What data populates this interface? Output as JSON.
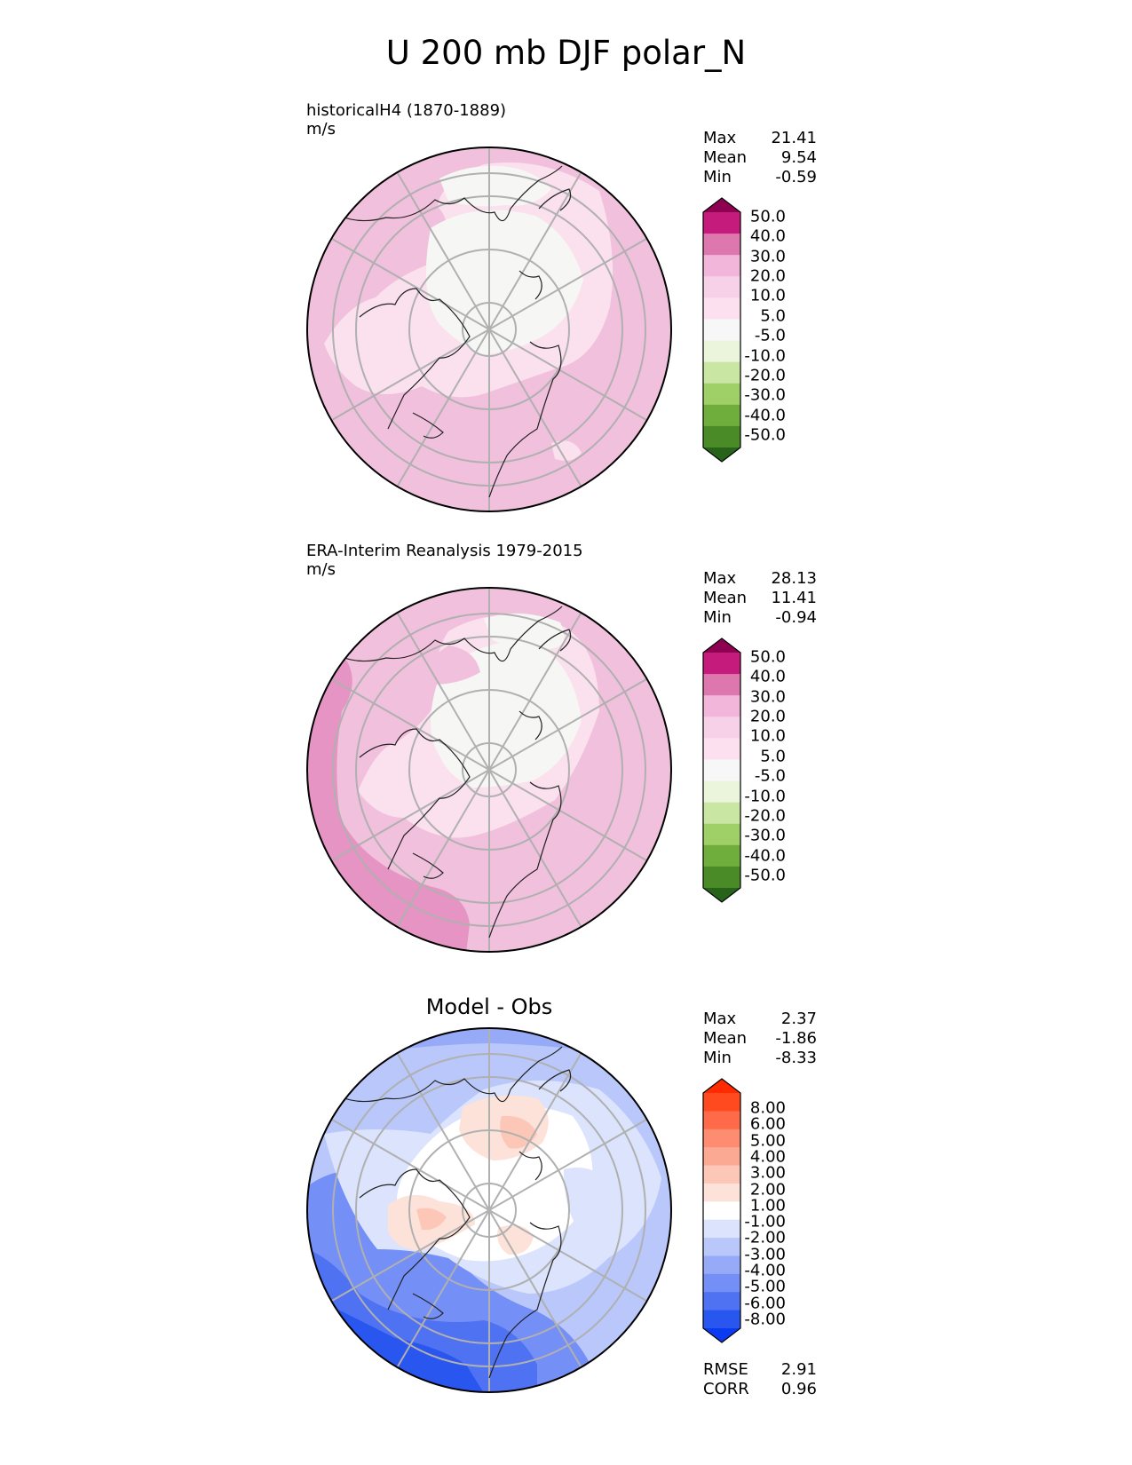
{
  "title": "U 200 mb DJF polar_N",
  "panels": [
    {
      "name": "model",
      "label_line1": "historicalH4 (1870-1889)",
      "label_line2": "m/s",
      "stats": [
        [
          "Max",
          "21.41"
        ],
        [
          "Mean",
          "9.54"
        ],
        [
          "Min",
          "-0.59"
        ]
      ],
      "colorbar_ticks": [
        "50.0",
        "40.0",
        "30.0",
        "20.0",
        "10.0",
        "5.0",
        "-5.0",
        "-10.0",
        "-20.0",
        "-30.0",
        "-40.0",
        "-50.0"
      ],
      "colorbar_colors": [
        "#8e0152",
        "#c51b7d",
        "#de77ae",
        "#f1b6da",
        "#f7d1e8",
        "#fde0ef",
        "#f7f7f7",
        "#eaf5dc",
        "#c9e7a2",
        "#9fd068",
        "#6fae3c",
        "#4a8b27",
        "#276419"
      ]
    },
    {
      "name": "obs",
      "label_line1": "ERA-Interim Reanalysis 1979-2015",
      "label_line2": "m/s",
      "stats": [
        [
          "Max",
          "28.13"
        ],
        [
          "Mean",
          "11.41"
        ],
        [
          "Min",
          "-0.94"
        ]
      ],
      "colorbar_ticks": [
        "50.0",
        "40.0",
        "30.0",
        "20.0",
        "10.0",
        "5.0",
        "-5.0",
        "-10.0",
        "-20.0",
        "-30.0",
        "-40.0",
        "-50.0"
      ],
      "colorbar_colors": [
        "#8e0152",
        "#c51b7d",
        "#de77ae",
        "#f1b6da",
        "#f7d1e8",
        "#fde0ef",
        "#f7f7f7",
        "#eaf5dc",
        "#c9e7a2",
        "#9fd068",
        "#6fae3c",
        "#4a8b27",
        "#276419"
      ]
    },
    {
      "name": "diff",
      "panel_title": "Model - Obs",
      "stats": [
        [
          "Max",
          "2.37"
        ],
        [
          "Mean",
          "-1.86"
        ],
        [
          "Min",
          "-8.33"
        ]
      ],
      "colorbar_ticks": [
        "8.00",
        "6.00",
        "5.00",
        "4.00",
        "3.00",
        "2.00",
        "1.00",
        "-1.00",
        "-2.00",
        "-3.00",
        "-4.00",
        "-5.00",
        "-6.00",
        "-8.00"
      ],
      "colorbar_colors": [
        "#ff2a00",
        "#ff4a20",
        "#ff6a48",
        "#fd8c70",
        "#fca994",
        "#fdc7b8",
        "#fde2da",
        "#ffffff",
        "#dbe3fd",
        "#b9c7fb",
        "#96aaf8",
        "#748ff6",
        "#4f72f3",
        "#2a56f0",
        "#0a3bf0"
      ],
      "metrics": [
        [
          "RMSE",
          "2.91"
        ],
        [
          "CORR",
          "0.96"
        ]
      ]
    }
  ]
}
